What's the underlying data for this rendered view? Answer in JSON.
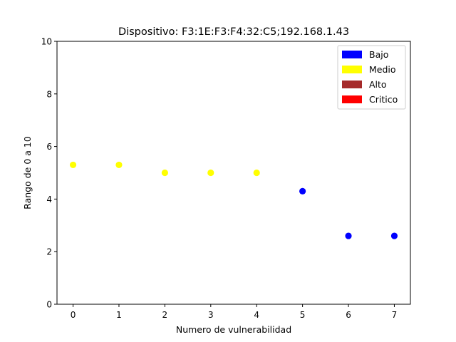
{
  "chart_data": {
    "type": "scatter",
    "title": "Dispositivo: F3:1E:F3:F4:32:C5;192.168.1.43",
    "xlabel": "Numero de vulnerabilidad",
    "ylabel": "Rango de 0 a 10",
    "xlim": [
      -0.35,
      7.35
    ],
    "ylim": [
      0,
      10
    ],
    "xticks": [
      "0",
      "1",
      "2",
      "3",
      "4",
      "5",
      "6",
      "7"
    ],
    "yticks": [
      "0",
      "2",
      "4",
      "6",
      "8",
      "10"
    ],
    "grid": false,
    "legend_position": "top-right",
    "legend": [
      {
        "label": "Bajo",
        "color": "#0000ff"
      },
      {
        "label": "Medio",
        "color": "#ffff00"
      },
      {
        "label": "Alto",
        "color": "#a52a2a"
      },
      {
        "label": "Critico",
        "color": "#ff0000"
      }
    ],
    "points": [
      {
        "x": 0,
        "y": 5.3,
        "color": "#ffff00"
      },
      {
        "x": 1,
        "y": 5.3,
        "color": "#ffff00"
      },
      {
        "x": 2,
        "y": 5.0,
        "color": "#ffff00"
      },
      {
        "x": 3,
        "y": 5.0,
        "color": "#ffff00"
      },
      {
        "x": 4,
        "y": 5.0,
        "color": "#ffff00"
      },
      {
        "x": 5,
        "y": 4.3,
        "color": "#0000ff"
      },
      {
        "x": 6,
        "y": 2.6,
        "color": "#0000ff"
      },
      {
        "x": 7,
        "y": 2.6,
        "color": "#0000ff"
      }
    ]
  }
}
